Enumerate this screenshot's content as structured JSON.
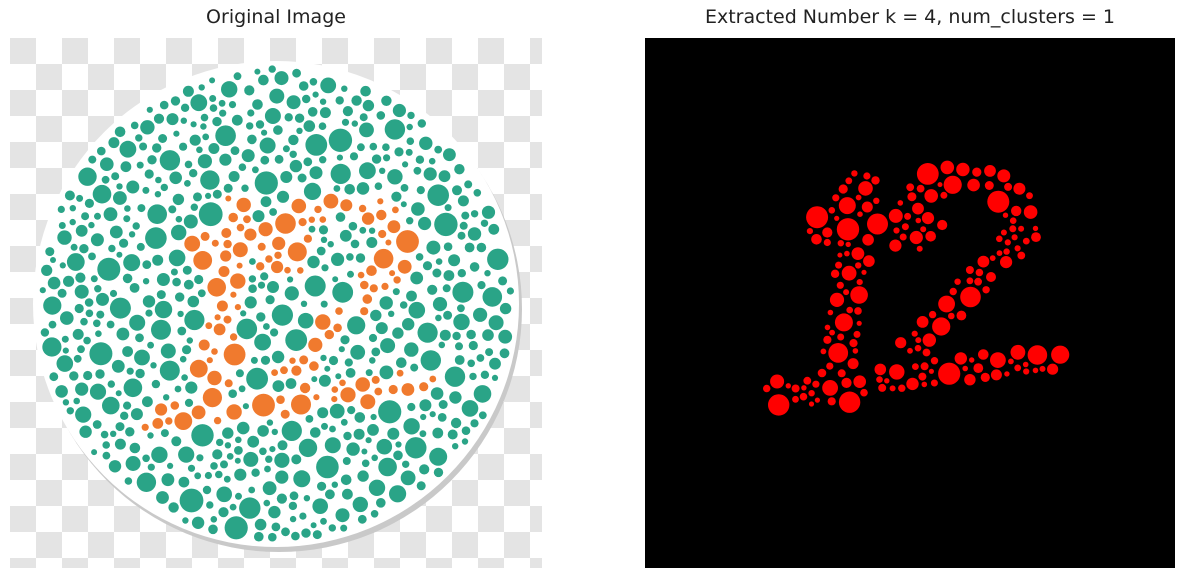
{
  "figure": {
    "left_panel": {
      "title": "Original Image"
    },
    "right_panel": {
      "title": "Extracted Number k = 4, num_clusters = 1"
    }
  },
  "colors": {
    "background_dot": "#2aa487",
    "digit_dot": "#f07a2e",
    "extracted_dot": "#ff0000",
    "extracted_background": "#000000",
    "checker_light": "#ffffff",
    "checker_dark": "#e4e4e4"
  }
}
